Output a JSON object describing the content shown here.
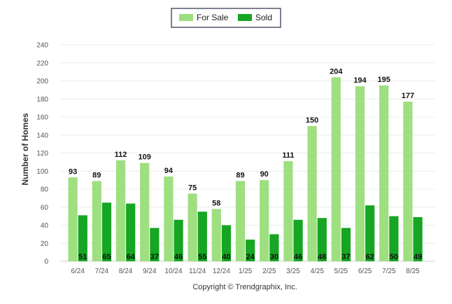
{
  "chart_data": {
    "type": "bar",
    "categories": [
      "6/24",
      "7/24",
      "8/24",
      "9/24",
      "10/24",
      "11/24",
      "12/24",
      "1/25",
      "2/25",
      "3/25",
      "4/25",
      "5/25",
      "6/25",
      "7/25",
      "8/25"
    ],
    "series": [
      {
        "name": "For Sale",
        "color": "#9edf80",
        "values": [
          93,
          89,
          112,
          109,
          94,
          75,
          58,
          89,
          90,
          111,
          150,
          204,
          194,
          195,
          177
        ]
      },
      {
        "name": "Sold",
        "color": "#17a524",
        "values": [
          51,
          65,
          64,
          37,
          46,
          55,
          40,
          24,
          30,
          46,
          48,
          37,
          62,
          50,
          49
        ]
      }
    ],
    "ylabel": "Number of Homes",
    "xlabel": "",
    "ylim": [
      0,
      240
    ],
    "yticks": [
      0,
      20,
      40,
      60,
      80,
      100,
      120,
      140,
      160,
      180,
      200,
      220,
      240
    ],
    "grid": true,
    "legend_position": "top-center"
  },
  "footer": {
    "copyright": "Copyright © Trendgraphix, Inc."
  }
}
